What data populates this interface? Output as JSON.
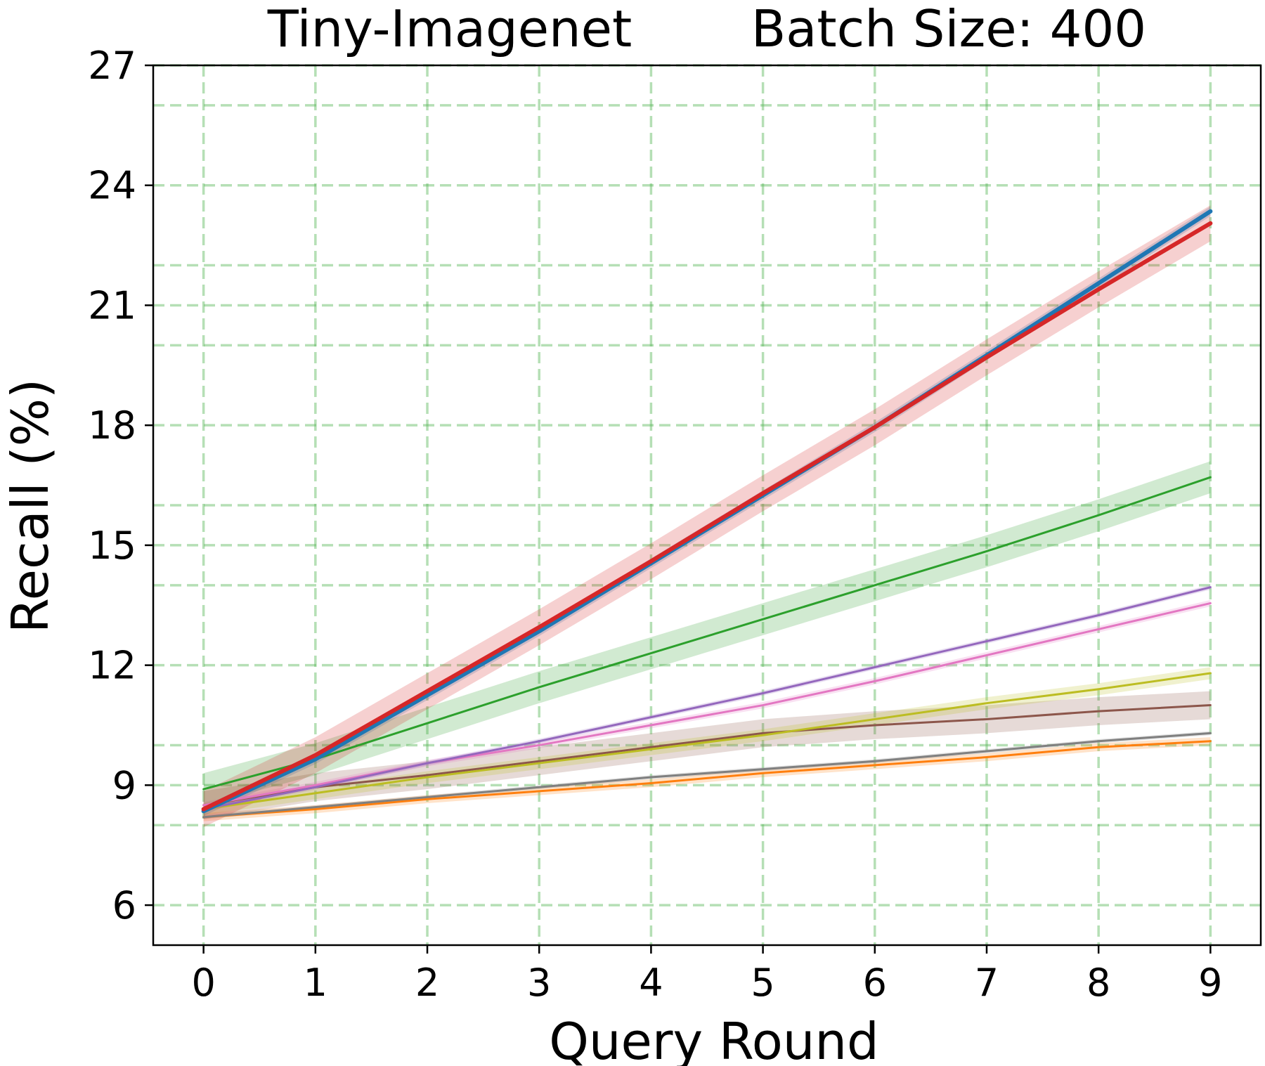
{
  "chart_data": {
    "type": "line",
    "title_left": "Tiny-Imagenet",
    "title_right": "Batch Size: 400",
    "xlabel": "Query Round",
    "ylabel": "Recall (%)",
    "xlim": [
      -0.45,
      9.45
    ],
    "ylim": [
      5,
      27
    ],
    "x_ticks": [
      0,
      1,
      2,
      3,
      4,
      5,
      6,
      7,
      8,
      9
    ],
    "y_ticks": [
      6,
      9,
      12,
      15,
      18,
      21,
      24,
      27
    ],
    "grid": true,
    "grid_style": "dashed",
    "grid_color": "#5cb85c",
    "grid_y_lines": [
      6,
      8,
      9,
      10,
      12,
      14,
      15,
      16,
      18,
      20,
      21,
      22,
      24,
      26,
      27
    ],
    "legend": "none",
    "x": [
      0,
      1,
      2,
      3,
      4,
      5,
      6,
      7,
      8,
      9
    ],
    "series": [
      {
        "color": "#ff7f0e",
        "width": 3,
        "values": [
          8.2,
          8.4,
          8.65,
          8.85,
          9.05,
          9.3,
          9.5,
          9.7,
          9.95,
          10.1
        ],
        "band": 0.1
      },
      {
        "color": "#7f7f7f",
        "width": 3,
        "values": [
          8.2,
          8.45,
          8.7,
          8.95,
          9.2,
          9.4,
          9.6,
          9.85,
          10.1,
          10.3
        ],
        "band": 0.05
      },
      {
        "color": "#8c564b",
        "width": 3,
        "values": [
          8.5,
          8.95,
          9.25,
          9.6,
          9.95,
          10.3,
          10.5,
          10.65,
          10.85,
          11.0
        ],
        "band": 0.35
      },
      {
        "color": "#bcbd22",
        "width": 3,
        "values": [
          8.4,
          8.8,
          9.2,
          9.55,
          9.9,
          10.25,
          10.65,
          11.05,
          11.4,
          11.8
        ],
        "band": 0.15
      },
      {
        "color": "#e377c2",
        "width": 3,
        "values": [
          8.5,
          9.0,
          9.55,
          10.0,
          10.5,
          11.0,
          11.6,
          12.25,
          12.9,
          13.55
        ],
        "band": 0.08
      },
      {
        "color": "#9467bd",
        "width": 3,
        "values": [
          8.4,
          8.95,
          9.55,
          10.1,
          10.7,
          11.3,
          11.95,
          12.6,
          13.25,
          13.95
        ],
        "band": 0.06
      },
      {
        "color": "#2ca02c",
        "width": 3,
        "values": [
          8.9,
          9.65,
          10.55,
          11.45,
          12.3,
          13.15,
          14.0,
          14.85,
          15.75,
          16.7
        ],
        "band": 0.4
      },
      {
        "color": "#1f77b4",
        "width": 6,
        "values": [
          8.35,
          9.65,
          11.25,
          12.85,
          14.55,
          16.25,
          17.95,
          19.75,
          21.55,
          23.35
        ],
        "band": 0.12
      },
      {
        "color": "#d62728",
        "width": 6,
        "values": [
          8.4,
          9.75,
          11.35,
          12.95,
          14.6,
          16.3,
          17.95,
          19.7,
          21.4,
          23.05
        ],
        "band": 0.45
      }
    ]
  }
}
